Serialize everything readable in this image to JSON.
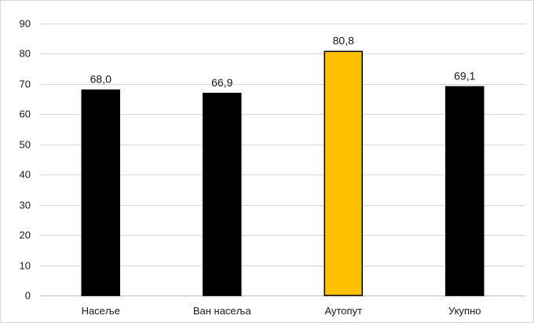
{
  "chart_data": {
    "type": "bar",
    "title": "",
    "xlabel": "",
    "ylabel": "",
    "categories": [
      "Насеље",
      "Ван насеља",
      "Аутопут",
      "Укупно"
    ],
    "values": [
      68.0,
      66.9,
      80.8,
      69.1
    ],
    "data_labels": [
      "68,0",
      "66,9",
      "80,8",
      "69,1"
    ],
    "ylim": [
      0,
      90
    ],
    "yticks": [
      0,
      10,
      20,
      30,
      40,
      50,
      60,
      70,
      80,
      90
    ],
    "ytick_labels": [
      "0",
      "10",
      "20",
      "30",
      "40",
      "50",
      "60",
      "70",
      "80",
      "90"
    ],
    "grid": true,
    "legend": "none",
    "bar_colors": [
      "#000000",
      "#000000",
      "#ffc000",
      "#000000"
    ],
    "bar_edge_color": "#000000",
    "grid_color": "#d9d9d9"
  }
}
